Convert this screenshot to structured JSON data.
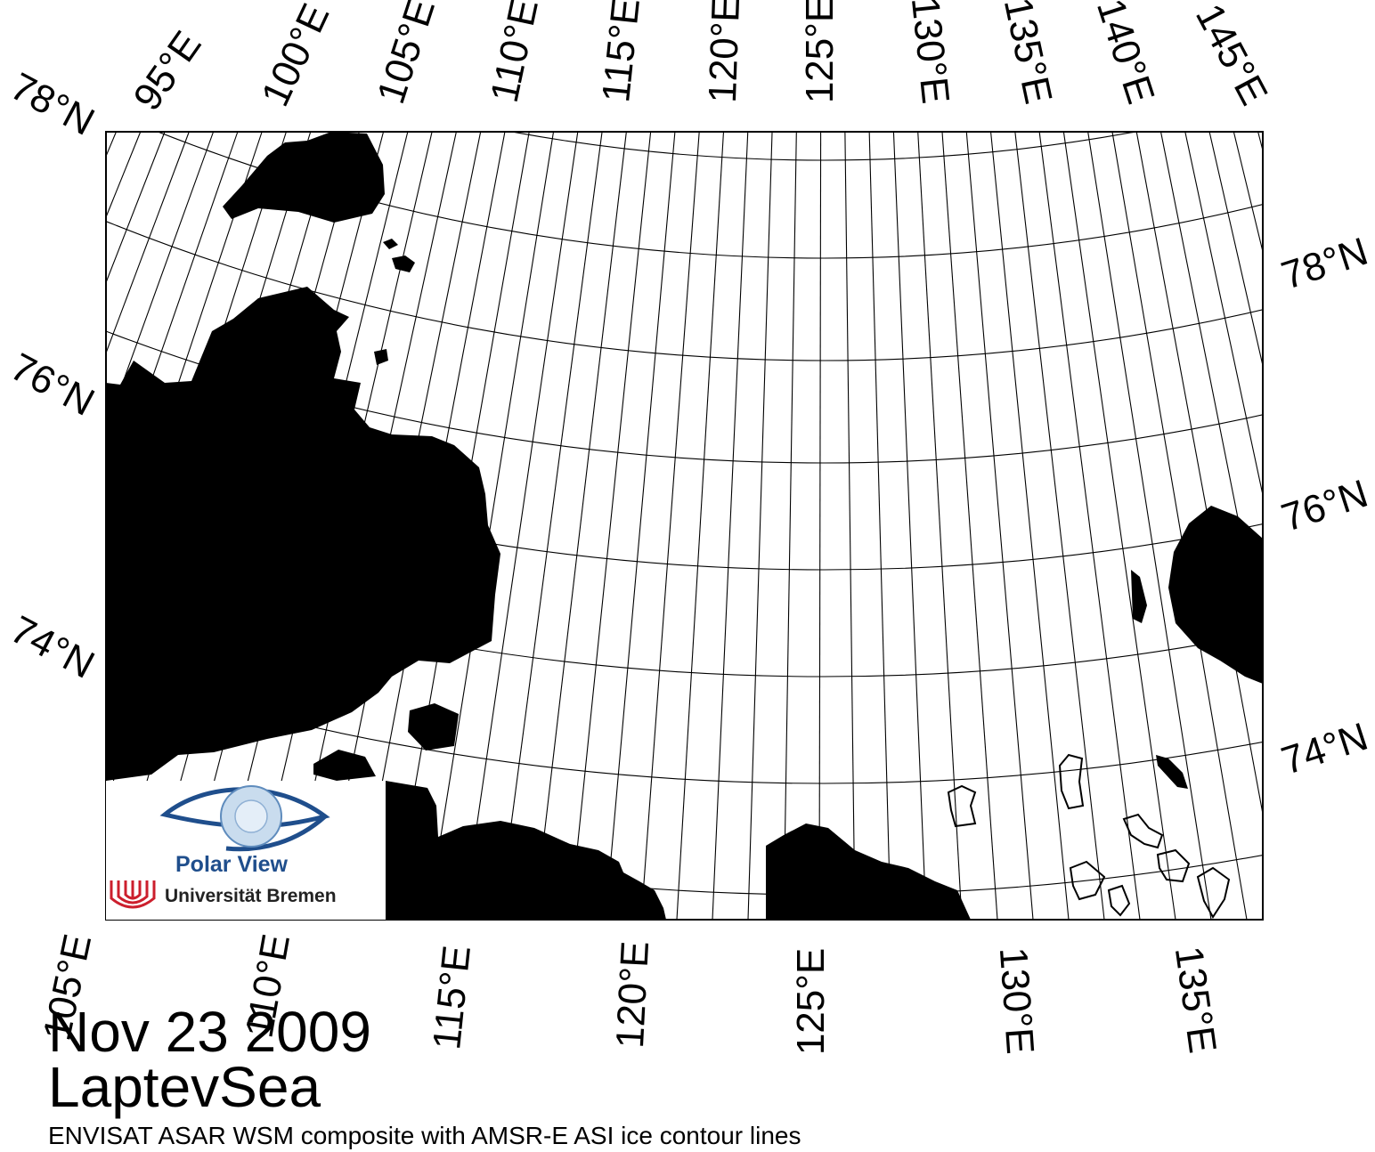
{
  "map": {
    "region": "LaptevSea",
    "date": "Nov 23 2009",
    "description": "ENVISAT ASAR WSM composite with AMSR-E ASI ice contour lines",
    "top_lon_labels": [
      "95°E",
      "100°E",
      "105°E",
      "110°E",
      "115°E",
      "120°E",
      "125°E",
      "130°E",
      "135°E",
      "140°E",
      "145°E"
    ],
    "bottom_lon_labels": [
      "105°E",
      "110°E",
      "115°E",
      "120°E",
      "125°E",
      "130°E",
      "135°E"
    ],
    "left_lat_labels": [
      "78°N",
      "76°N",
      "74°N"
    ],
    "right_lat_labels": [
      "78°N",
      "76°N",
      "74°N"
    ],
    "land_color": "#000000",
    "background_color": "#ffffff"
  },
  "logo": {
    "title": "Polar View",
    "institution": "Universität Bremen",
    "title_color": "#1f4e8c",
    "emblem_color": "#cc1f2d"
  }
}
